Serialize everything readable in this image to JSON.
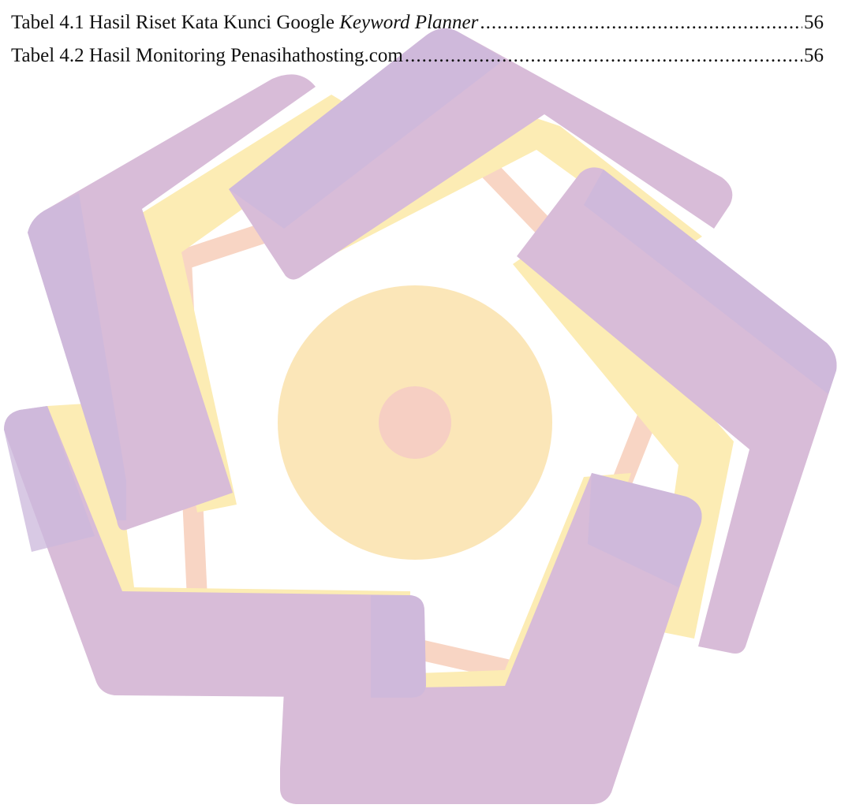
{
  "toc": {
    "entries": [
      {
        "label": "Tabel 4.1 Hasil Riset Kata Kunci Google ",
        "label_italic": "Keyword Planner",
        "page": "56"
      },
      {
        "label": "Tabel 4.2 Hasil Monitoring Penasihathosting.com",
        "label_italic": "",
        "page": "56"
      }
    ]
  },
  "watermark": {
    "icon": "university-emblem",
    "colors": {
      "purple": "#d7bdd8",
      "purple_shadow": "#cdb9dc",
      "yellow": "#fcebb5",
      "peach": "#f9d9c4",
      "pink": "#f8cfc4"
    }
  }
}
